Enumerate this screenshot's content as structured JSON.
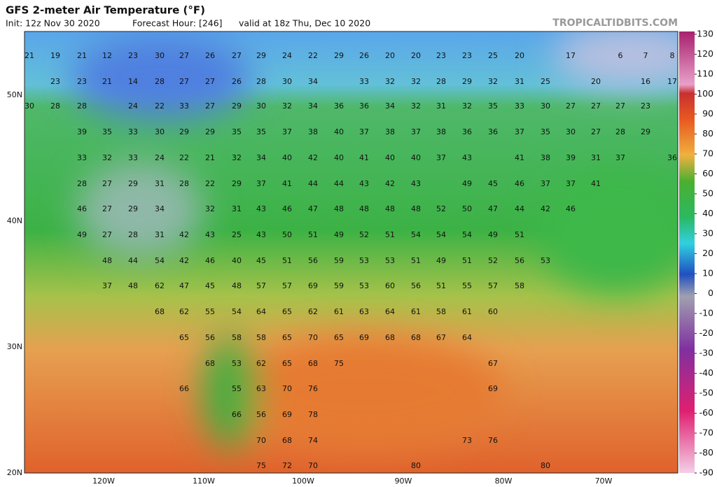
{
  "header": {
    "title": "GFS 2-meter Air Temperature (°F)",
    "init": "Init: 12z Nov 30 2020",
    "forecast_hour": "Forecast Hour: [246]",
    "valid": "valid at 18z Thu, Dec 10 2020",
    "brand": "TROPICALTIDBITS.COM"
  },
  "map": {
    "latitude_labels": [
      "50N",
      "40N",
      "30N",
      "20N"
    ],
    "longitude_labels": [
      "120W",
      "110W",
      "100W",
      "90W",
      "80W",
      "70W"
    ],
    "temperature_labels": [
      [
        21,
        19,
        21,
        12,
        23,
        30,
        27,
        26,
        27,
        29,
        24,
        22,
        29,
        26,
        20,
        20,
        23,
        23,
        25,
        20,
        17,
        6,
        7,
        8
      ],
      [
        23,
        23,
        21,
        14,
        28,
        27,
        27,
        26,
        28,
        30,
        34,
        33,
        32,
        32,
        28,
        29,
        32,
        31,
        25,
        20,
        16,
        17
      ],
      [
        30,
        28,
        28,
        24,
        22,
        33,
        27,
        29,
        30,
        32,
        34,
        36,
        36,
        34,
        32,
        31,
        32,
        35,
        33,
        30,
        27,
        27,
        27,
        23
      ],
      [
        39,
        35,
        33,
        30,
        29,
        29,
        35,
        35,
        37,
        38,
        40,
        37,
        38,
        37,
        38,
        36,
        36,
        37,
        35,
        30,
        27,
        28,
        29
      ],
      [
        33,
        32,
        33,
        24,
        22,
        21,
        32,
        34,
        40,
        42,
        40,
        41,
        40,
        40,
        37,
        43,
        41,
        38,
        39,
        31,
        37,
        36
      ],
      [
        28,
        27,
        29,
        31,
        28,
        22,
        29,
        37,
        41,
        44,
        44,
        43,
        42,
        43,
        49,
        45,
        46,
        37,
        37,
        41
      ],
      [
        46,
        27,
        29,
        34,
        32,
        31,
        43,
        46,
        47,
        48,
        48,
        48,
        48,
        52,
        50,
        47,
        44,
        42,
        46
      ],
      [
        49,
        27,
        28,
        31,
        42,
        43,
        25,
        43,
        50,
        51,
        49,
        52,
        51,
        54,
        54,
        54,
        49,
        51
      ],
      [
        48,
        44,
        54,
        42,
        46,
        40,
        45,
        51,
        56,
        59,
        53,
        53,
        51,
        49,
        51,
        52,
        56,
        53
      ],
      [
        37,
        48,
        62,
        47,
        45,
        48,
        57,
        57,
        69,
        59,
        53,
        60,
        56,
        51,
        55,
        57,
        58
      ],
      [
        68,
        62,
        55,
        54,
        64,
        65,
        62,
        61,
        63,
        64,
        61,
        58,
        61,
        60
      ],
      [
        65,
        56,
        58,
        58,
        65,
        70,
        65,
        69,
        68,
        68,
        67,
        64
      ],
      [
        68,
        53,
        62,
        65,
        68,
        75,
        67
      ],
      [
        66,
        55,
        63,
        70,
        76,
        69
      ],
      [
        66,
        56,
        69,
        78
      ],
      [
        70,
        68,
        74,
        73,
        76
      ],
      [
        75,
        72,
        70,
        80,
        80
      ]
    ]
  },
  "colorbar": {
    "ticks": [
      130,
      120,
      110,
      100,
      90,
      80,
      70,
      60,
      50,
      40,
      30,
      20,
      10,
      0,
      -10,
      -20,
      -30,
      -40,
      -50,
      -60,
      -70,
      -80,
      -90
    ]
  }
}
